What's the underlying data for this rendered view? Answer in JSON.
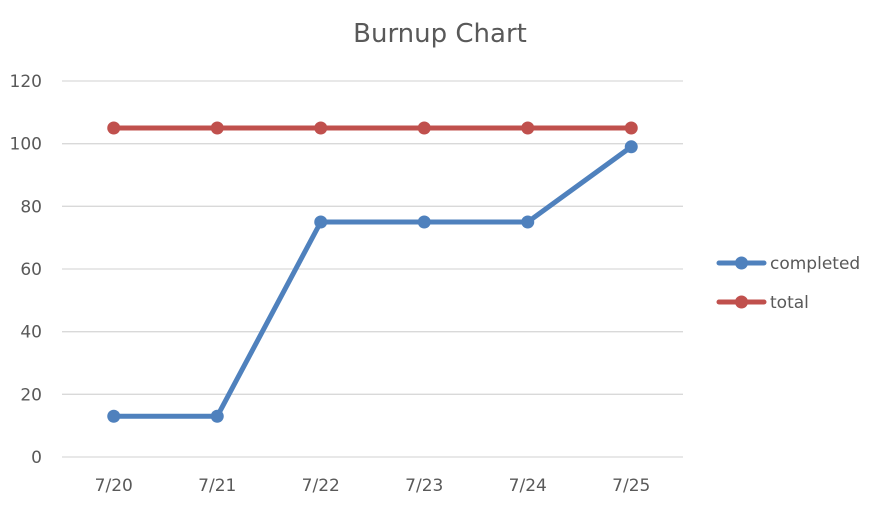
{
  "chart_data": {
    "type": "line",
    "title": "Burnup Chart",
    "categories": [
      "7/20",
      "7/21",
      "7/22",
      "7/23",
      "7/24",
      "7/25"
    ],
    "series": [
      {
        "name": "completed",
        "values": [
          13,
          13,
          75,
          75,
          75,
          99
        ],
        "color": "#4f81bd"
      },
      {
        "name": "total",
        "values": [
          105,
          105,
          105,
          105,
          105,
          105
        ],
        "color": "#c0504d"
      }
    ],
    "ylim": [
      0,
      120
    ],
    "yticks": [
      "0",
      "20",
      "40",
      "60",
      "80",
      "100",
      "120"
    ],
    "grid": true,
    "legend_position": "right"
  }
}
